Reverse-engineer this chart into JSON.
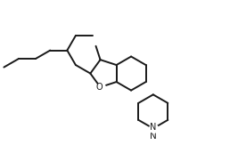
{
  "bg_color": "#ffffff",
  "line_color": "#1a1a1a",
  "line_width": 1.4,
  "fig_width": 2.67,
  "fig_height": 1.63,
  "dpi": 100,
  "N_label": "N"
}
